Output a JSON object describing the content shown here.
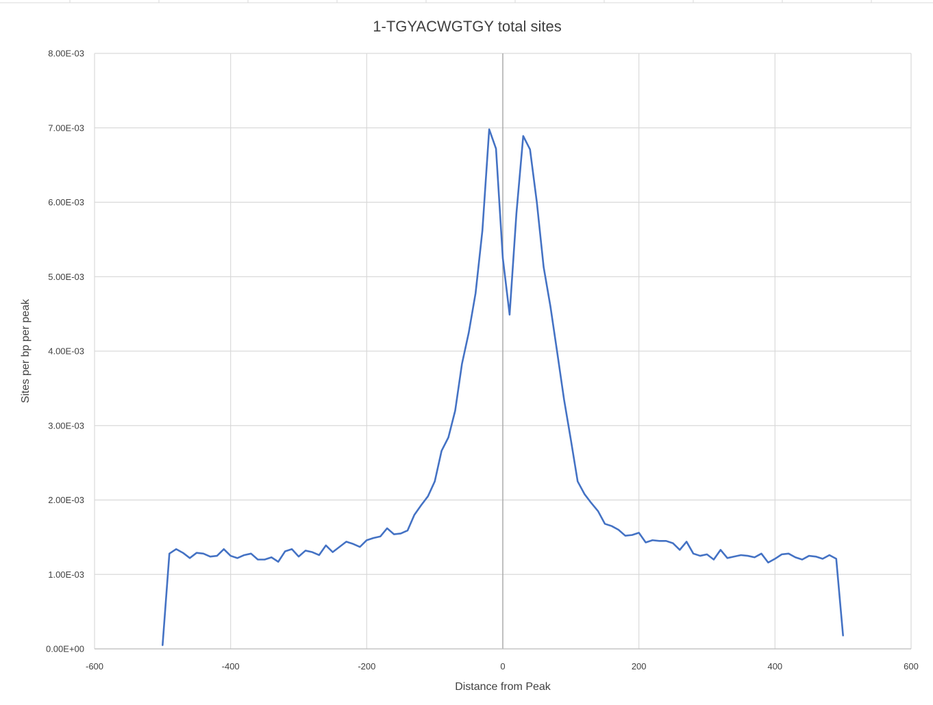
{
  "chart_data": {
    "type": "line",
    "title": "1-TGYACWGTGY total sites",
    "xlabel": "Distance from Peak",
    "ylabel": "Sites per bp per peak",
    "xlim": [
      -600,
      600
    ],
    "ylim": [
      0,
      0.008
    ],
    "x_ticks": [
      -600,
      -400,
      -200,
      0,
      200,
      400,
      600
    ],
    "x_tick_labels": [
      "-600",
      "-400",
      "-200",
      "0",
      "200",
      "400",
      "600"
    ],
    "y_ticks": [
      0,
      0.001,
      0.002,
      0.003,
      0.004,
      0.005,
      0.006,
      0.007,
      0.008
    ],
    "y_tick_labels": [
      "0.00E+00",
      "1.00E-03",
      "2.00E-03",
      "3.00E-03",
      "4.00E-03",
      "5.00E-03",
      "6.00E-03",
      "7.00E-03",
      "8.00E-03"
    ],
    "grid": true,
    "legend": "none",
    "line_color": "#4472c4",
    "series": [
      {
        "x": [
          -500,
          -490,
          -480,
          -470,
          -460,
          -450,
          -440,
          -430,
          -420,
          -410,
          -400,
          -390,
          -380,
          -370,
          -360,
          -350,
          -340,
          -330,
          -320,
          -310,
          -300,
          -290,
          -280,
          -270,
          -260,
          -250,
          -240,
          -230,
          -220,
          -210,
          -200,
          -190,
          -180,
          -170,
          -160,
          -150,
          -140,
          -130,
          -120,
          -110,
          -100,
          -90,
          -80,
          -70,
          -60,
          -50,
          -40,
          -30,
          -20,
          -10,
          0,
          10,
          20,
          30,
          40,
          50,
          60,
          70,
          80,
          90,
          100,
          110,
          120,
          130,
          140,
          150,
          160,
          170,
          180,
          190,
          200,
          210,
          220,
          230,
          240,
          250,
          260,
          270,
          280,
          290,
          300,
          310,
          320,
          330,
          340,
          350,
          360,
          370,
          380,
          390,
          400,
          410,
          420,
          430,
          440,
          450,
          460,
          470,
          480,
          490,
          500
        ],
        "values": [
          5e-05,
          0.00128,
          0.00134,
          0.00129,
          0.00122,
          0.00129,
          0.00128,
          0.00124,
          0.00125,
          0.00134,
          0.00125,
          0.00122,
          0.00126,
          0.00128,
          0.0012,
          0.0012,
          0.00123,
          0.00117,
          0.00131,
          0.00134,
          0.00124,
          0.00132,
          0.0013,
          0.00126,
          0.00139,
          0.0013,
          0.00137,
          0.00144,
          0.00141,
          0.00137,
          0.00146,
          0.00149,
          0.00151,
          0.00162,
          0.00154,
          0.00155,
          0.00159,
          0.0018,
          0.00193,
          0.00205,
          0.00225,
          0.00266,
          0.00284,
          0.0032,
          0.00383,
          0.00425,
          0.00478,
          0.00562,
          0.00698,
          0.00672,
          0.00525,
          0.00449,
          0.00585,
          0.00689,
          0.00671,
          0.006,
          0.00513,
          0.0046,
          0.00398,
          0.00335,
          0.00281,
          0.00225,
          0.00208,
          0.00196,
          0.00185,
          0.00168,
          0.00165,
          0.0016,
          0.00152,
          0.00153,
          0.00156,
          0.00143,
          0.00146,
          0.00145,
          0.00145,
          0.00142,
          0.00133,
          0.00144,
          0.00128,
          0.00125,
          0.00127,
          0.0012,
          0.00133,
          0.00122,
          0.00124,
          0.00126,
          0.00125,
          0.00123,
          0.00128,
          0.00116,
          0.00121,
          0.00127,
          0.00128,
          0.00123,
          0.0012,
          0.00125,
          0.00124,
          0.00121,
          0.00126,
          0.00121,
          0.00018
        ]
      }
    ]
  }
}
